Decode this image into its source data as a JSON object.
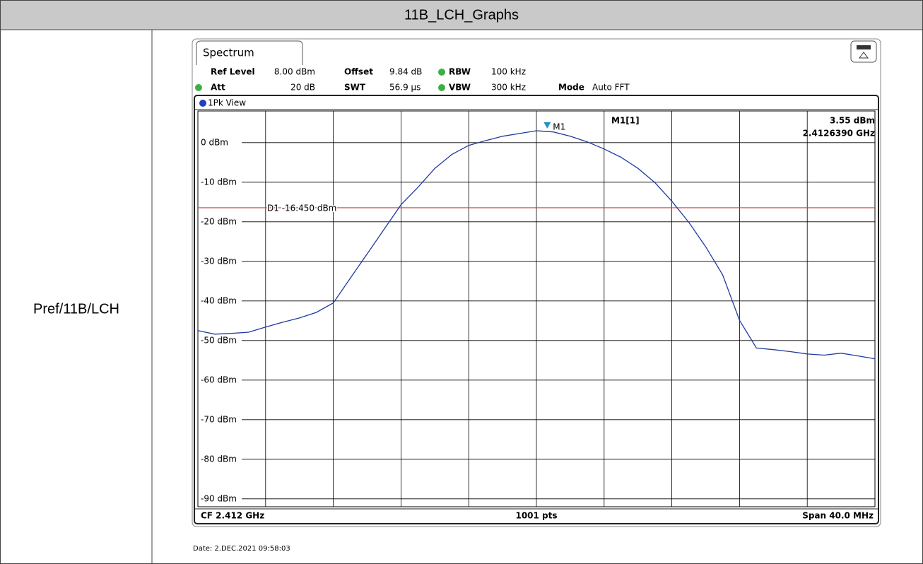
{
  "table": {
    "title": "11B_LCH_Graphs",
    "row_label": "Pref/11B/LCH",
    "date": "Date: 2.DEC.2021 09:58:03"
  },
  "chart_data": {
    "type": "line",
    "tab": "Spectrum",
    "settings": [
      {
        "name": "Ref Level",
        "value": "8.00 dBm"
      },
      {
        "name": "Offset",
        "value": "9.84 dB"
      },
      {
        "name": "RBW",
        "value": "100 kHz"
      },
      {
        "name": "Att",
        "value": "20 dB"
      },
      {
        "name": "SWT",
        "value": "56.9 µs"
      },
      {
        "name": "VBW",
        "value": "300 kHz"
      },
      {
        "name": "Mode",
        "value": "Auto FFT"
      }
    ],
    "view": "1Pk View",
    "footer_left": "CF 2.412 GHz",
    "footer_center": "1001 pts",
    "footer_right": "Span 40.0 MHz",
    "xlim": [
      2.392,
      2.432
    ],
    "xticks": [
      2.396,
      2.4,
      2.404,
      2.408,
      2.412,
      2.416,
      2.42,
      2.424,
      2.428
    ],
    "ylim": [
      -92,
      8
    ],
    "yticks": [
      {
        "value": 0,
        "label": "0 dBm"
      },
      {
        "value": -10,
        "label": "-10 dBm"
      },
      {
        "value": -20,
        "label": "-20 dBm"
      },
      {
        "value": -30,
        "label": "-30 dBm"
      },
      {
        "value": -40,
        "label": "-40 dBm"
      },
      {
        "value": -50,
        "label": "-50 dBm"
      },
      {
        "value": -60,
        "label": "-60 dBm"
      },
      {
        "value": -70,
        "label": "-70 dBm"
      },
      {
        "value": -80,
        "label": "-80 dBm"
      },
      {
        "value": -90,
        "label": "-90 dBm"
      }
    ],
    "grid": true,
    "series": [
      {
        "name": "1Pk",
        "color": "#1f3b9e",
        "x": [
          2.392,
          2.393,
          2.394,
          2.395,
          2.396,
          2.397,
          2.398,
          2.399,
          2.4,
          2.401,
          2.402,
          2.403,
          2.404,
          2.405,
          2.406,
          2.407,
          2.408,
          2.409,
          2.41,
          2.411,
          2.412,
          2.413,
          2.414,
          2.415,
          2.416,
          2.417,
          2.418,
          2.419,
          2.42,
          2.421,
          2.422,
          2.423,
          2.424,
          2.425,
          2.426,
          2.427,
          2.428,
          2.429,
          2.43,
          2.431,
          2.432
        ],
        "values": [
          -47.5,
          -48.4,
          -48.2,
          -47.9,
          -46.6,
          -45.4,
          -44.3,
          -42.9,
          -40.5,
          -34.3,
          -28.1,
          -21.9,
          -15.7,
          -11.3,
          -6.5,
          -3.0,
          -0.7,
          0.5,
          1.6,
          2.3,
          3.0,
          2.7,
          1.6,
          0.2,
          -1.6,
          -3.7,
          -6.5,
          -10.1,
          -14.8,
          -20.1,
          -26.3,
          -33.4,
          -44.9,
          -51.9,
          -52.3,
          -52.8,
          -53.4,
          -53.7,
          -53.2,
          -53.9,
          -54.6
        ]
      }
    ],
    "marker": {
      "label": "M1",
      "readout": "M1[1]",
      "x": 2.412639,
      "value": 3.55,
      "value_label": "3.55 dBm",
      "x_label": "2.4126390 GHz",
      "color": "#2a8fc4"
    },
    "display_line": {
      "label": "D1 -16.450 dBm",
      "value": -16.45,
      "color": "#d03a3a"
    }
  }
}
